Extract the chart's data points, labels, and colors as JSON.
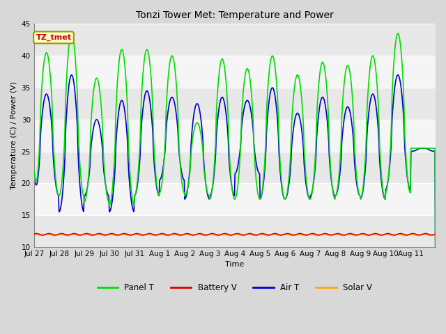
{
  "title": "Tonzi Tower Met: Temperature and Power",
  "xlabel": "Time",
  "ylabel": "Temperature (C) / Power (V)",
  "ylim": [
    10,
    45
  ],
  "yticks": [
    10,
    15,
    20,
    25,
    30,
    35,
    40,
    45
  ],
  "fig_bg_color": "#d8d8d8",
  "plot_bg_color": "#e8e8e8",
  "band_colors": [
    "#e8e8e8",
    "#f5f5f5"
  ],
  "grid_color": "#ffffff",
  "annotation_text": "TZ_tmet",
  "annotation_bg": "#ffffcc",
  "annotation_fg": "#cc0000",
  "annotation_edge": "#999900",
  "x_tick_labels": [
    "Jul 27",
    "Jul 28",
    "Jul 29",
    "Jul 30",
    "Jul 31",
    "Aug 1",
    "Aug 2",
    "Aug 3",
    "Aug 4",
    "Aug 5",
    "Aug 6",
    "Aug 7",
    "Aug 8",
    "Aug 9",
    "Aug 10",
    "Aug 11"
  ],
  "panel_T_color": "#00dd00",
  "battery_V_color": "#dd0000",
  "air_T_color": "#0000cc",
  "solar_V_color": "#ffaa00",
  "line_width": 1.2,
  "figsize": [
    6.4,
    4.8
  ],
  "dpi": 100
}
